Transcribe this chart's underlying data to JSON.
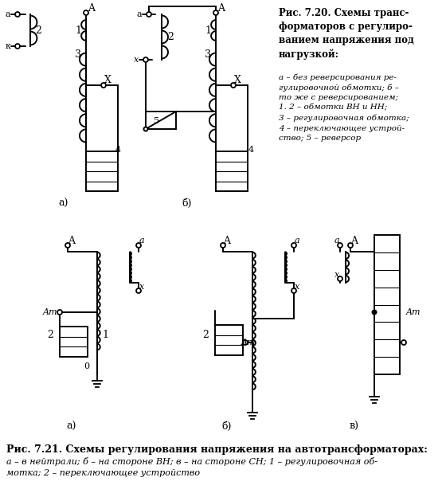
{
  "background_color": "#ffffff",
  "line_color": "#000000",
  "text_color": "#000000",
  "fig720_title": "Рис. 7.20. Схемы транс-\nформаторов с регулиро-\nванием напряжения под\nнагрузкой:",
  "fig720_legend": "а – без реверсирования ре-\nгулировочной обмотки; б –\nто же с реверсированием;\n1. 2 – обмотки ВН и НН;\n3 – регулировочная обмотка;\n4 – переключающее устрой-\nство; 5 – реверсор",
  "fig721_title": "Рис. 7.21. Схемы регулирования напряжения на автотрансформаторах:",
  "fig721_legend": "а – в нейтрали; б – на стороне ВН; в – на стороне СН; 1 – регулировочная об-\nмотка; 2 – переключающее устройство"
}
